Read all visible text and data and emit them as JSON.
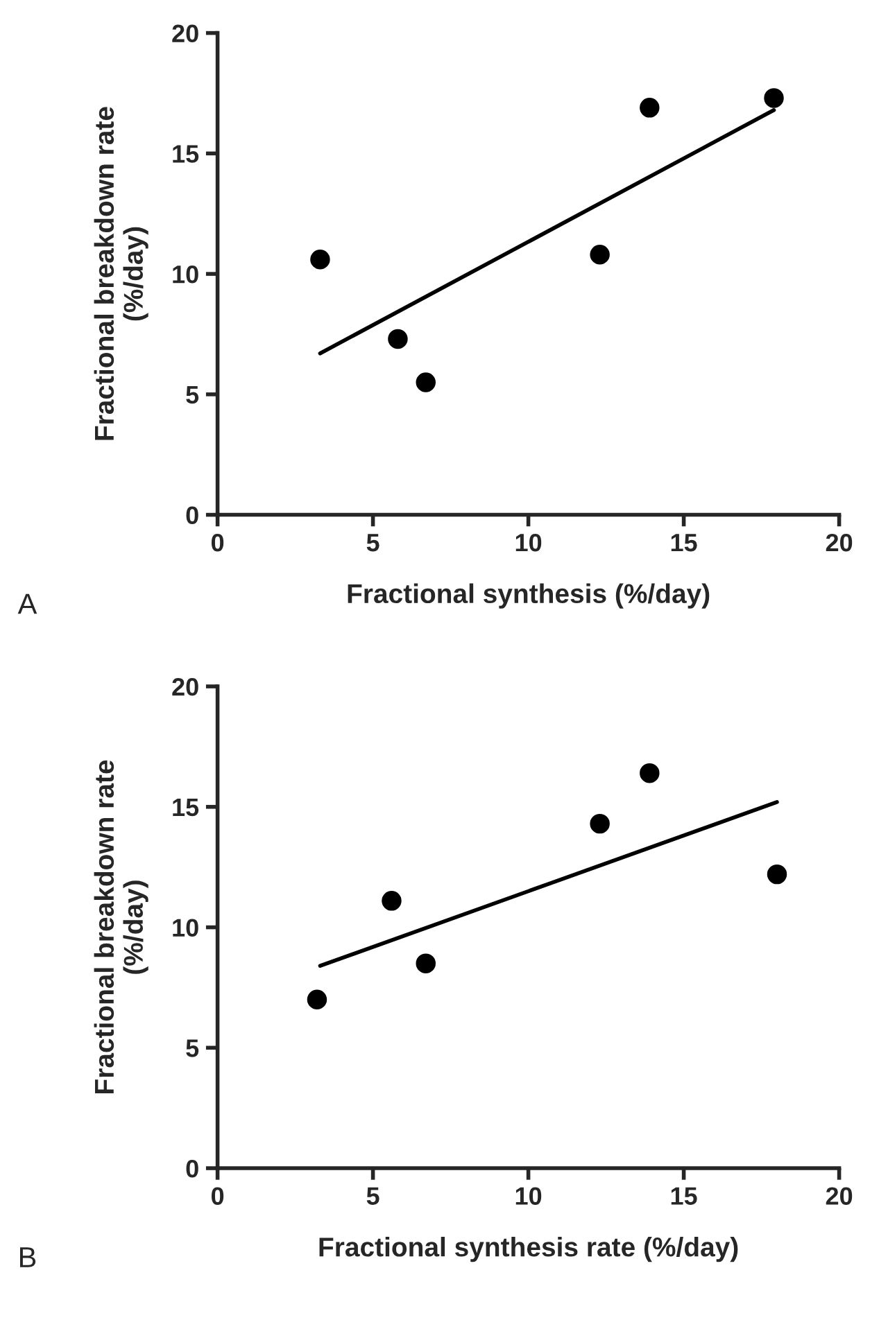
{
  "chart_data": [
    {
      "type": "scatter",
      "xlabel": "Fractional synthesis (%/day)",
      "ylabel": "Fractional breakdown rate\n(%/day)",
      "annotations": [
        "A"
      ],
      "xlim": [
        0,
        20
      ],
      "ylim": [
        0,
        20
      ],
      "xticks": [
        0,
        5,
        10,
        15,
        20
      ],
      "yticks": [
        0,
        5,
        10,
        15,
        20
      ],
      "grid": false,
      "series": [
        {
          "marker": "circle",
          "color": "#000000",
          "x": [
            3.3,
            5.8,
            6.7,
            12.3,
            13.9,
            17.9
          ],
          "values": [
            10.6,
            7.3,
            5.5,
            10.8,
            16.9,
            17.3
          ]
        },
        {
          "type": "line",
          "marker": "none",
          "color": "#000000",
          "x": [
            3.3,
            17.9
          ],
          "values": [
            6.7,
            16.8
          ]
        }
      ]
    },
    {
      "type": "scatter",
      "xlabel": "Fractional synthesis rate (%/day)",
      "ylabel": "Fractional breakdown rate\n(%/day)",
      "annotations": [
        "B"
      ],
      "xlim": [
        0,
        20
      ],
      "ylim": [
        0,
        20
      ],
      "xticks": [
        0,
        5,
        10,
        15,
        20
      ],
      "yticks": [
        0,
        5,
        10,
        15,
        20
      ],
      "grid": false,
      "series": [
        {
          "marker": "circle",
          "color": "#000000",
          "x": [
            3.2,
            5.6,
            6.7,
            12.3,
            13.9,
            18.0
          ],
          "values": [
            7.0,
            11.1,
            8.5,
            14.3,
            16.4,
            12.2
          ]
        },
        {
          "type": "line",
          "marker": "none",
          "color": "#000000",
          "x": [
            3.3,
            18.0
          ],
          "values": [
            8.4,
            15.2
          ]
        }
      ]
    }
  ]
}
